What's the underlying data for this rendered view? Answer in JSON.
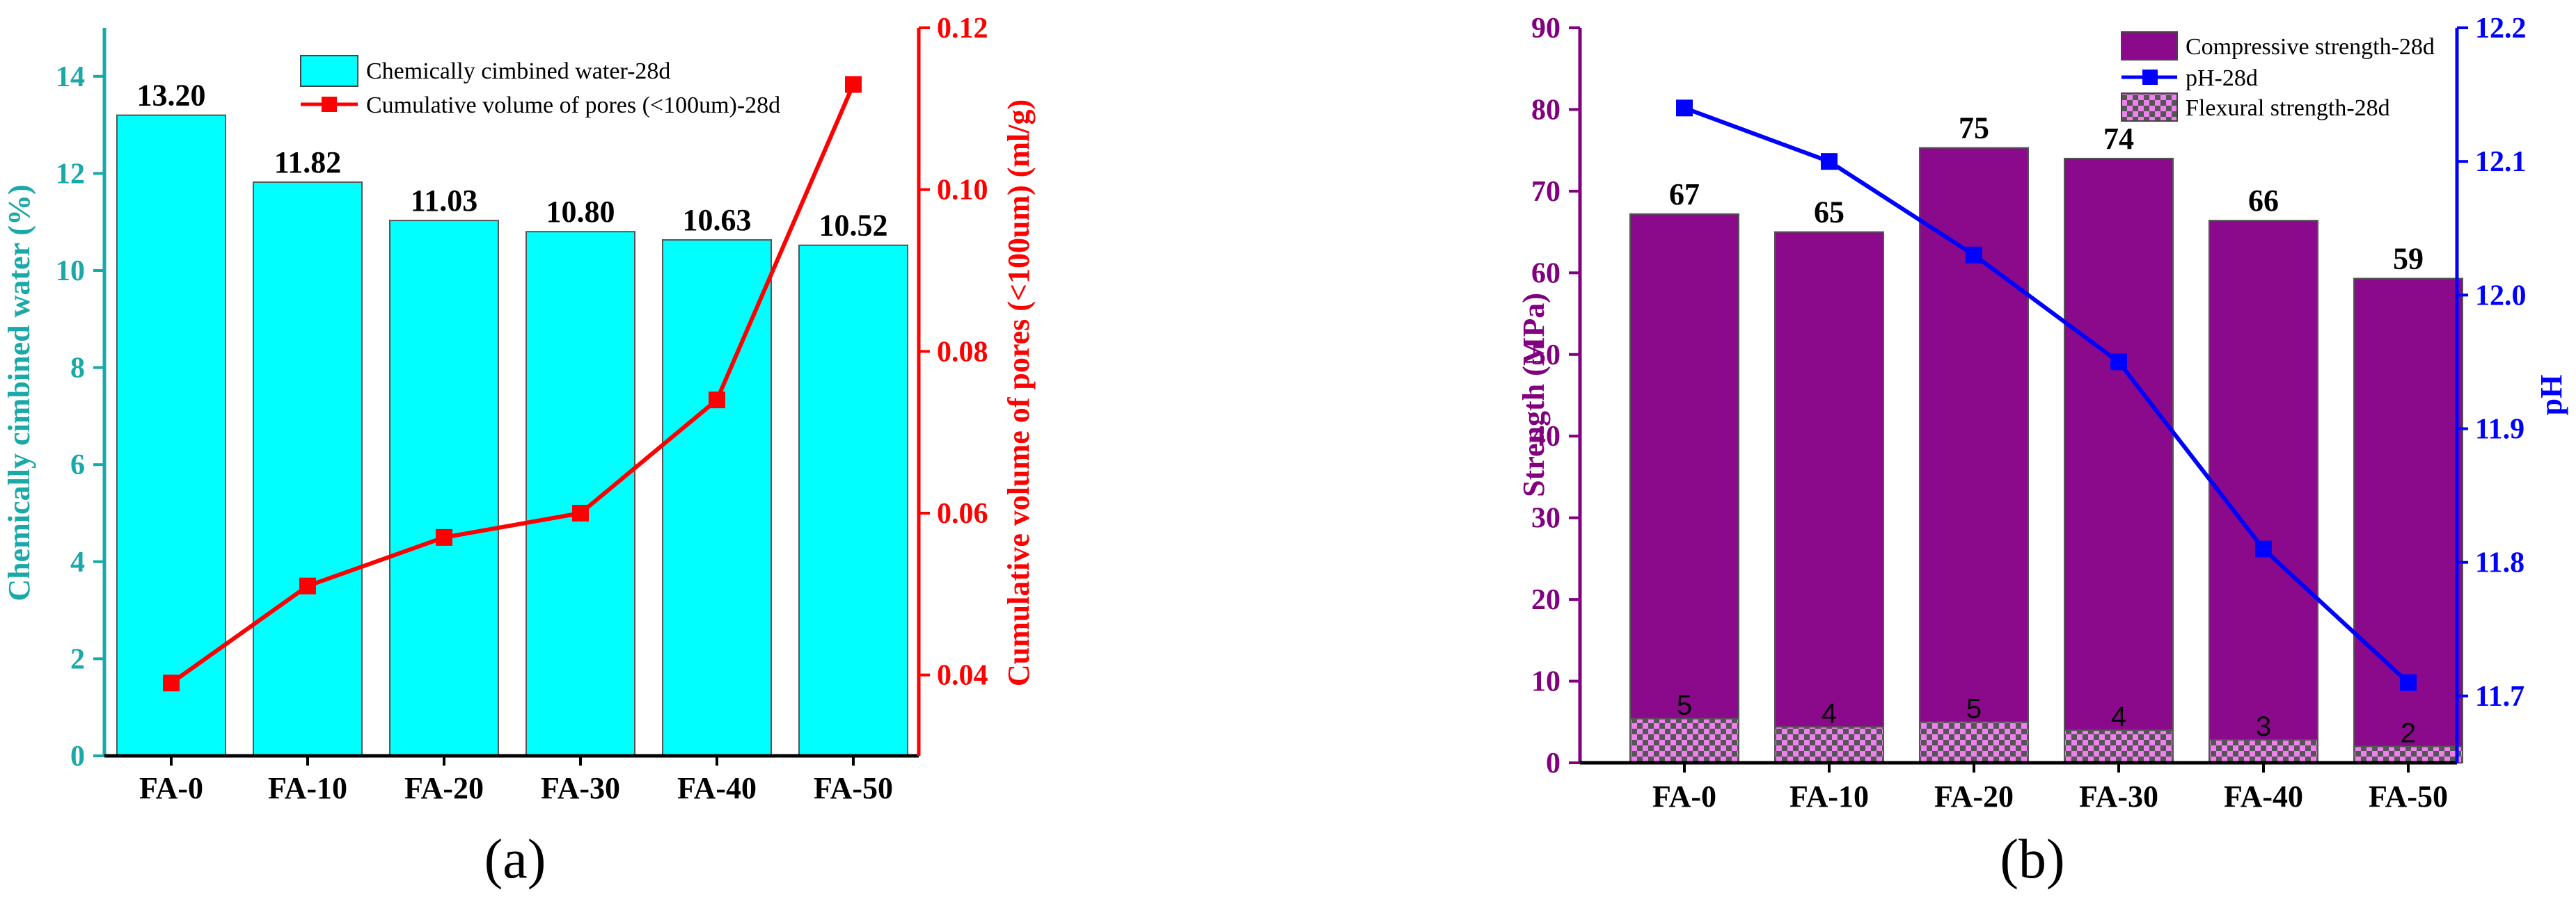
{
  "chart_data": [
    {
      "type": "bar",
      "panel_label": "(a)",
      "categories": [
        "FA-0",
        "FA-10",
        "FA-20",
        "FA-30",
        "FA-40",
        "FA-50"
      ],
      "series": [
        {
          "name": "Chemically cimbined water-28d",
          "kind": "bar",
          "axis": "left",
          "values": [
            13.2,
            11.82,
            11.03,
            10.8,
            10.63,
            10.52
          ],
          "labels": [
            "13.20",
            "11.82",
            "11.03",
            "10.80",
            "10.63",
            "10.52"
          ],
          "color": "#00ffff"
        },
        {
          "name": "Cumulative volume of pores (<100um)-28d",
          "kind": "line",
          "axis": "right",
          "values": [
            0.039,
            0.051,
            0.057,
            0.06,
            0.074,
            0.113
          ],
          "color": "#ff0000"
        }
      ],
      "ylabel": "Chemically cimbined water (%)",
      "ylabel_color": "#1aa8a8",
      "ylim": [
        0,
        15
      ],
      "yticks": [
        0,
        2,
        4,
        6,
        8,
        10,
        12,
        14
      ],
      "y2label": "Cumulative volume of pores (<100um) (ml/g)",
      "y2label_color": "#ff0000",
      "y2lim": [
        0.03,
        0.12
      ],
      "y2ticks": [
        "0.04",
        "0.06",
        "0.08",
        "0.10",
        "0.12"
      ],
      "legend": "top-center"
    },
    {
      "type": "bar",
      "panel_label": "(b)",
      "categories": [
        "FA-0",
        "FA-10",
        "FA-20",
        "FA-30",
        "FA-40",
        "FA-50"
      ],
      "series": [
        {
          "name": "Compressive strength-28d",
          "kind": "bar",
          "axis": "left",
          "values": [
            67.2,
            65.0,
            75.3,
            74.0,
            66.4,
            59.3
          ],
          "labels": [
            "67",
            "65",
            "75",
            "74",
            "66",
            "59"
          ],
          "color": "#8b0a8b"
        },
        {
          "name": "pH-28d",
          "kind": "line",
          "axis": "right",
          "values": [
            12.14,
            12.1,
            12.03,
            11.95,
            11.81,
            11.71
          ],
          "color": "#0000ff"
        },
        {
          "name": "Flexural strength-28d",
          "kind": "bar",
          "axis": "left",
          "values": [
            5.4,
            4.4,
            5.0,
            4.0,
            2.8,
            2.0
          ],
          "labels": [
            "5",
            "4",
            "5",
            "4",
            "3",
            "2"
          ],
          "color": "#f07ff0"
        }
      ],
      "ylabel": "Strength (MPa)",
      "ylabel_color": "#800080",
      "ylim": [
        0,
        90
      ],
      "yticks": [
        0,
        10,
        20,
        30,
        40,
        50,
        60,
        70,
        80,
        90
      ],
      "y2label": "pH",
      "y2label_color": "#0000ff",
      "y2lim": [
        11.65,
        12.2
      ],
      "y2ticks": [
        "11.7",
        "11.8",
        "11.9",
        "12.0",
        "12.1",
        "12.2"
      ],
      "legend": "top-right"
    }
  ]
}
